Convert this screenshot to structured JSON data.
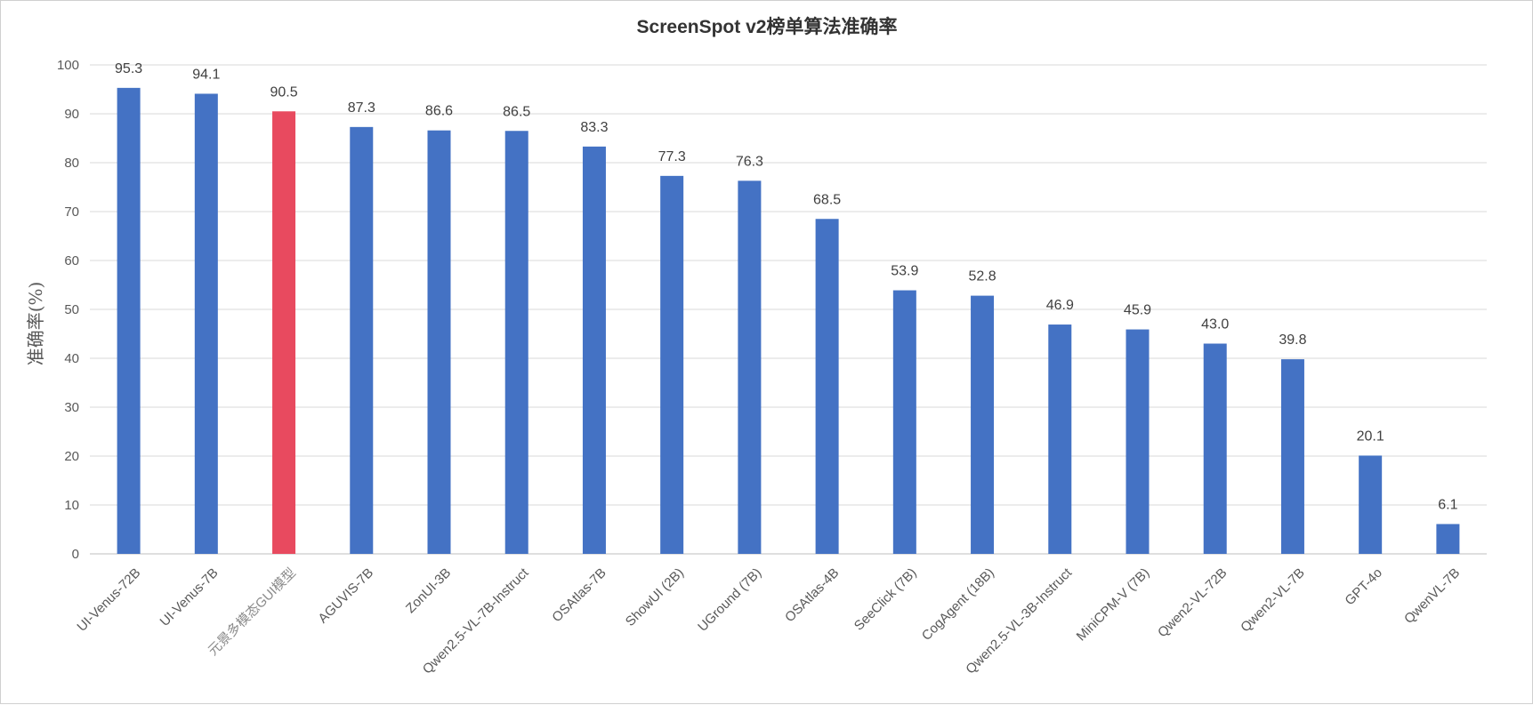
{
  "chart_data": {
    "type": "bar",
    "title": "ScreenSpot v2榜单算法准确率",
    "xlabel": "",
    "ylabel": "准确率(%)",
    "ylim": [
      0,
      100
    ],
    "yticks": [
      "0",
      "10",
      "20",
      "30",
      "40",
      "50",
      "60",
      "70",
      "80",
      "90",
      "100"
    ],
    "grid": true,
    "categories": [
      "UI-Venus-72B",
      "UI-Venus-7B",
      "元景多模态GUI模型",
      "AGUVIS-7B",
      "ZonUI-3B",
      "Qwen2.5-VL-7B-Instruct",
      "OSAtlas-7B",
      "ShowUI (2B)",
      "UGround (7B)",
      "OSAtlas-4B",
      "SeeClick (7B)",
      "CogAgent (18B)",
      "Qwen2.5-VL-3B-Instruct",
      "MiniCPM-V (7B)",
      "Qwen2-VL-72B",
      "Qwen2-VL-7B",
      "GPT-4o",
      "QwenVL-7B"
    ],
    "values": [
      95.3,
      94.1,
      90.5,
      87.3,
      86.6,
      86.5,
      83.3,
      77.3,
      76.3,
      68.5,
      53.9,
      52.8,
      46.9,
      45.9,
      43.0,
      39.8,
      20.1,
      6.1
    ],
    "value_labels": [
      "95.3",
      "94.1",
      "90.5",
      "87.3",
      "86.6",
      "86.5",
      "83.3",
      "77.3",
      "76.3",
      "68.5",
      "53.9",
      "52.8",
      "46.9",
      "45.9",
      "43.0",
      "39.8",
      "20.1",
      "6.1"
    ],
    "highlight_index": 2,
    "colors": {
      "bar": "#4472c4",
      "highlight": "#e84a5f"
    }
  }
}
